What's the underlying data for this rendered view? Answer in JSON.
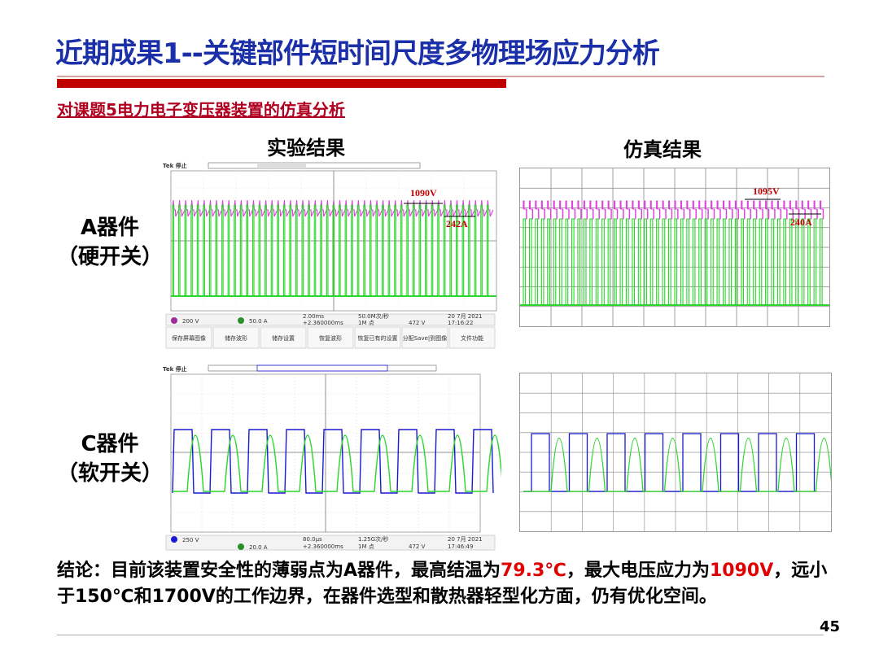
{
  "slide": {
    "title": "近期成果1--关键部件短时间尺度多物理场应力分析",
    "subtitle": "对课题5电力电子变压器装置的仿真分析",
    "page_number": "45"
  },
  "columns": {
    "experiment": "实验结果",
    "simulation": "仿真结果"
  },
  "rows": {
    "a_label_line1": "A器件",
    "a_label_line2": "（硬开关）",
    "c_label_line1": "C器件",
    "c_label_line2": "（软开关）"
  },
  "scope_a": {
    "brand": "Tek 停止",
    "voltage_annotation": "1090V",
    "current_annotation": "242A",
    "status": {
      "ch3": "200 V",
      "ch4": "50.0 A",
      "timebase": "2.00ms",
      "offset": "+2.360000ms",
      "rate": "50.0M次/秒",
      "points": "1M 点",
      "trigger": "472 V",
      "date": "20 7月 2021",
      "time": "17:16:22"
    },
    "menu": [
      "保存屏幕图像",
      "储存波形",
      "储存设置",
      "恢复波形",
      "恢复已有的设置",
      "分配Save|到图像",
      "文件功能"
    ]
  },
  "scope_c": {
    "brand": "Tek 停止",
    "status": {
      "ch1": "250 V",
      "ch4": "20.0 A",
      "timebase": "80.0μs",
      "offset": "+2.360000ms",
      "rate": "1.25G次/秒",
      "points": "1M 点",
      "trigger": "472 V",
      "date": "20 7月 2021",
      "time": "17:46:49"
    }
  },
  "sim_a": {
    "voltage_annotation": "1095V",
    "current_annotation": "240A"
  },
  "conclusion": {
    "p1": "结论：目前该装置安全性的薄弱点为A器件，最高结温为",
    "temp": "79.3℃",
    "p2": "，最大电压应力为",
    "volt": "1090V",
    "p3": "，远小于150℃和1700V的工作边界，在器件选型和散热器轻型化方面，仍有优化空间。"
  },
  "colors": {
    "title_blue": "#1a2fa8",
    "accent_red": "#c00000",
    "trace_magenta": "#e040e0",
    "trace_green": "#2bd62b",
    "trace_blue": "#1a1ad6"
  }
}
